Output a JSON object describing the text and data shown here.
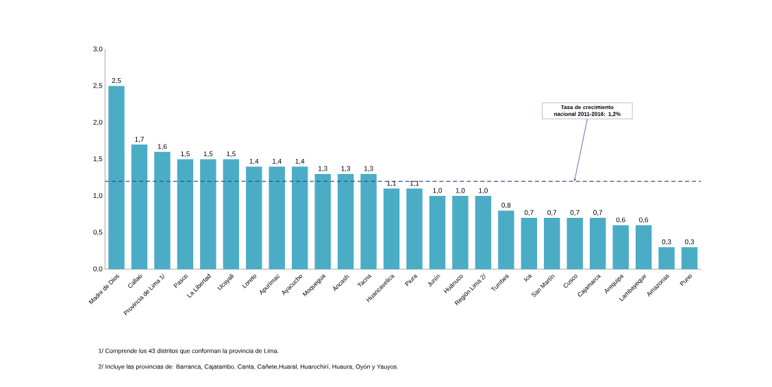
{
  "chart_data": {
    "type": "bar",
    "categories": [
      "Madre de Dios",
      "Callao",
      "Provincia de Lima 1/",
      "Pasco",
      "La Libertad",
      "Ucayali",
      "Loreto",
      "Apurímac",
      "Ayacucho",
      "Moquegua",
      "Áncash",
      "Tacna",
      "Huancavelica",
      "Piura",
      "Junín",
      "Huánuco",
      "Región Lima 2/",
      "Tumbes",
      "Ica",
      "San Martín",
      "Cusco",
      "Cajamarca",
      "Arequipa",
      "Lambayeque",
      "Amazonas",
      "Puno"
    ],
    "values": [
      2.5,
      1.7,
      1.6,
      1.5,
      1.5,
      1.5,
      1.4,
      1.4,
      1.4,
      1.3,
      1.3,
      1.3,
      1.1,
      1.1,
      1.0,
      1.0,
      1.0,
      0.8,
      0.7,
      0.7,
      0.7,
      0.7,
      0.6,
      0.6,
      0.3,
      0.3
    ],
    "value_labels": [
      "2,5",
      "1,7",
      "1,6",
      "1,5",
      "1,5",
      "1,5",
      "1,4",
      "1,4",
      "1,4",
      "1,3",
      "1,3",
      "1,3",
      "1,1",
      "1,1",
      "1,0",
      "1,0",
      "1,0",
      "0,8",
      "0,7",
      "0,7",
      "0,7",
      "0,7",
      "0,6",
      "0,6",
      "0,3",
      "0,3"
    ],
    "color": "#4bacc6",
    "ylim": [
      0,
      3
    ],
    "yticks": [
      {
        "value": 0,
        "label": "0,0"
      },
      {
        "value": 0.5,
        "label": "0,5"
      },
      {
        "value": 1,
        "label": "1,0"
      },
      {
        "value": 1.5,
        "label": "1,5"
      },
      {
        "value": 2,
        "label": "2,0"
      },
      {
        "value": 2.5,
        "label": "2,5"
      },
      {
        "value": 3,
        "label": "3,0"
      }
    ],
    "grid": false,
    "ref_lines": [
      {
        "axis": "y",
        "value": 1.2,
        "label": "Tasa de crecimiento nacional 2011-2016: 1,2%",
        "color": "#2f4f8f",
        "line_style": "dashed"
      }
    ],
    "annotations": [
      "1/ Comprende los 43 distritos  que conforman la provincia de Lima.",
      "2/ Incluye las provincias de: Barranca, Cajatambo, Canta, Cañete,Huaral, Huarochirí, Huaura, Oyón y Yauyos."
    ]
  }
}
